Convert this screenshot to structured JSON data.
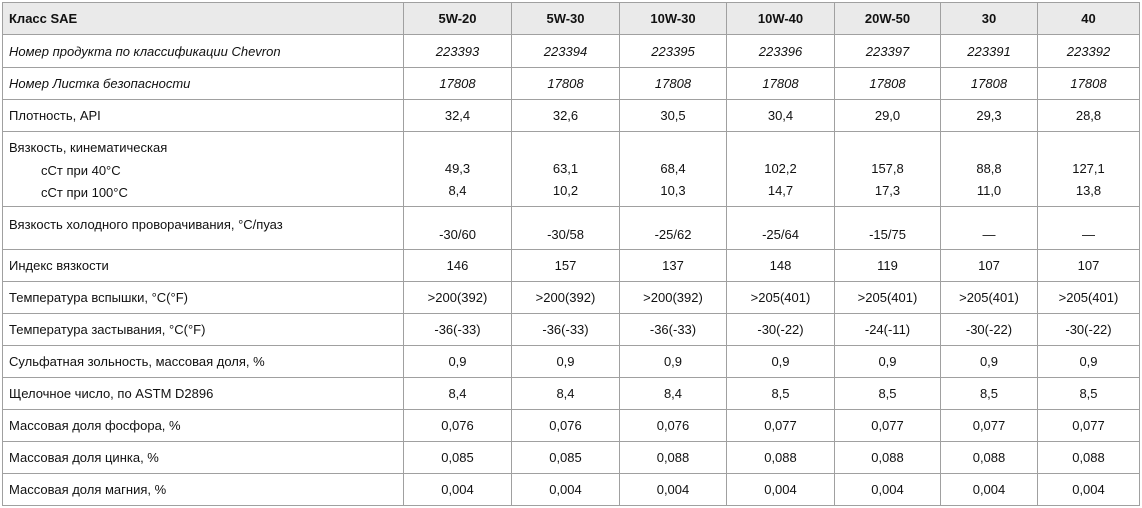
{
  "header": {
    "label": "Класс SAE",
    "grades": [
      "5W-20",
      "5W-30",
      "10W-30",
      "10W-40",
      "20W-50",
      "30",
      "40"
    ]
  },
  "rows": [
    {
      "label": "Номер продукта по классификации Chevron",
      "italic": true,
      "values": [
        "223393",
        "223394",
        "223395",
        "223396",
        "223397",
        "223391",
        "223392"
      ]
    },
    {
      "label": "Номер Листка безопасности",
      "italic": true,
      "values": [
        "17808",
        "17808",
        "17808",
        "17808",
        "17808",
        "17808",
        "17808"
      ]
    },
    {
      "label": "Плотность, API",
      "values": [
        "32,4",
        "32,6",
        "30,5",
        "30,4",
        "29,0",
        "29,3",
        "28,8"
      ]
    }
  ],
  "viscosity": {
    "label": "Вязкость, кинематическая",
    "sub40_label": "сСт при 40°C",
    "sub100_label": "сСт при 100°C",
    "at40": [
      "49,3",
      "63,1",
      "68,4",
      "102,2",
      "157,8",
      "88,8",
      "127,1"
    ],
    "at100": [
      "8,4",
      "10,2",
      "10,3",
      "14,7",
      "17,3",
      "11,0",
      "13,8"
    ]
  },
  "cold_crank": {
    "label": "Вязкость холодного проворачивания, °C/пуаз",
    "values": [
      "-30/60",
      "-30/58",
      "-25/62",
      "-25/64",
      "-15/75",
      "—",
      "—"
    ]
  },
  "rows2": [
    {
      "label": "Индекс вязкости",
      "values": [
        "146",
        "157",
        "137",
        "148",
        "119",
        "107",
        "107"
      ]
    },
    {
      "label": "Температура вспышки, °C(°F)",
      "values": [
        ">200(392)",
        ">200(392)",
        ">200(392)",
        ">205(401)",
        ">205(401)",
        ">205(401)",
        ">205(401)"
      ]
    },
    {
      "label": "Температура застывания, °C(°F)",
      "values": [
        "-36(-33)",
        "-36(-33)",
        "-36(-33)",
        "-30(-22)",
        "-24(-11)",
        "-30(-22)",
        "-30(-22)"
      ]
    },
    {
      "label": "Сульфатная зольность, массовая доля, %",
      "values": [
        "0,9",
        "0,9",
        "0,9",
        "0,9",
        "0,9",
        "0,9",
        "0,9"
      ]
    },
    {
      "label": "Щелочное число, по ASTM D2896",
      "values": [
        "8,4",
        "8,4",
        "8,4",
        "8,5",
        "8,5",
        "8,5",
        "8,5"
      ]
    },
    {
      "label": "Массовая доля фосфора, %",
      "values": [
        "0,076",
        "0,076",
        "0,076",
        "0,077",
        "0,077",
        "0,077",
        "0,077"
      ]
    },
    {
      "label": "Массовая доля цинка, %",
      "values": [
        "0,085",
        "0,085",
        "0,088",
        "0,088",
        "0,088",
        "0,088",
        "0,088"
      ]
    },
    {
      "label": "Массовая доля магния, %",
      "values": [
        "0,004",
        "0,004",
        "0,004",
        "0,004",
        "0,004",
        "0,004",
        "0,004"
      ]
    }
  ]
}
